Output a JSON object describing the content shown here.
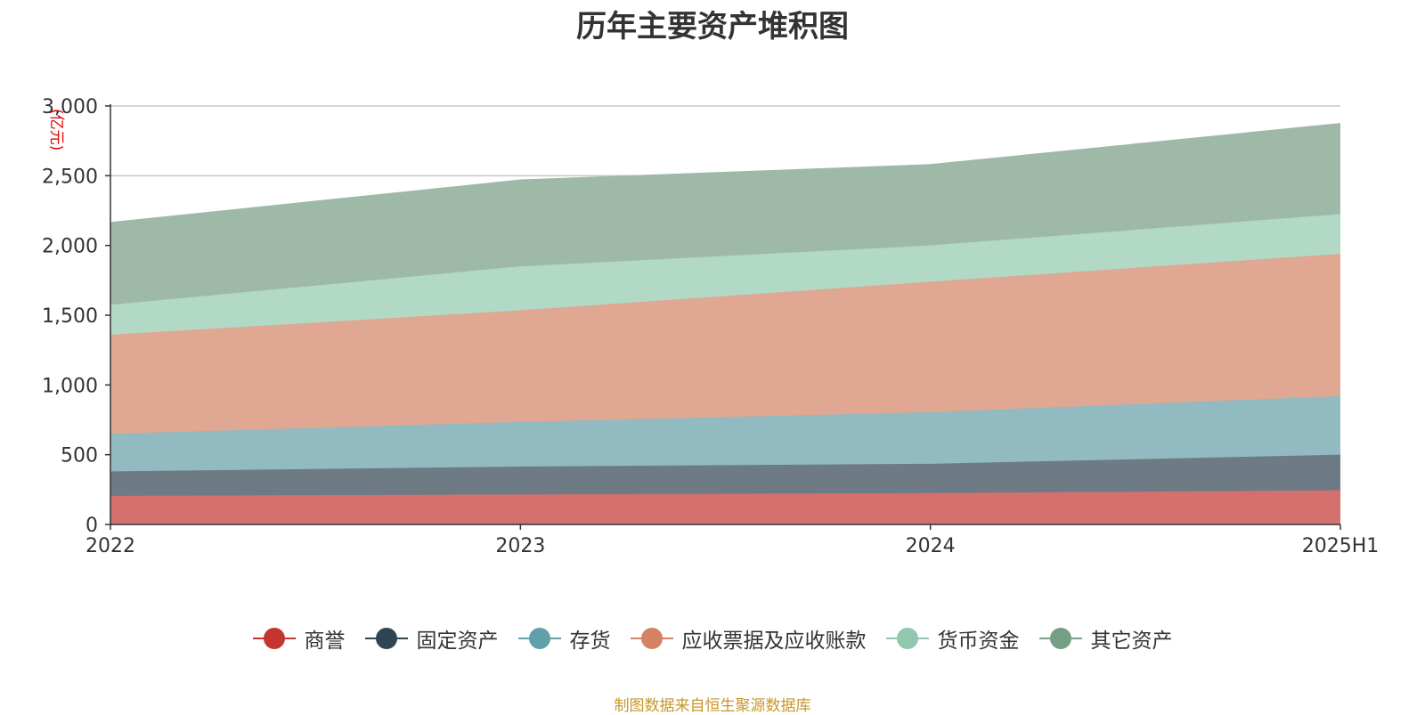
{
  "title": "历年主要资产堆积图",
  "source": "制图数据来自恒生聚源数据库",
  "chart_data": {
    "type": "area",
    "stacked": true,
    "title": "历年主要资产堆积图",
    "unit": "(亿元)",
    "categories": [
      "2022",
      "2023",
      "2024",
      "2025H1"
    ],
    "ylim": [
      0,
      3000
    ],
    "yticks": [
      0,
      500,
      1000,
      1500,
      2000,
      2500,
      3000
    ],
    "ytick_labels": [
      "0",
      "500",
      "1,000",
      "1,500",
      "2,000",
      "2,500",
      "3,000"
    ],
    "grid": true,
    "legend_position": "bottom",
    "series": [
      {
        "name": "商誉",
        "values": [
          205,
          215,
          225,
          245
        ],
        "color": "#c23531",
        "fill": "#d4716e"
      },
      {
        "name": "固定资产",
        "values": [
          175,
          200,
          210,
          255
        ],
        "color": "#2f4554",
        "fill": "#6e7b85"
      },
      {
        "name": "存货",
        "values": [
          270,
          320,
          370,
          420
        ],
        "color": "#61a0a8",
        "fill": "#91bbc1"
      },
      {
        "name": "应收票据及应收账款",
        "values": [
          710,
          800,
          935,
          1020
        ],
        "color": "#d48265",
        "fill": "#e0a792"
      },
      {
        "name": "货币资金",
        "values": [
          215,
          315,
          260,
          285
        ],
        "color": "#91c7ae",
        "fill": "#b2d8c6"
      },
      {
        "name": "其它资产",
        "values": [
          590,
          620,
          580,
          650
        ],
        "color": "#749f83",
        "fill": "#9eb9a7"
      }
    ]
  }
}
